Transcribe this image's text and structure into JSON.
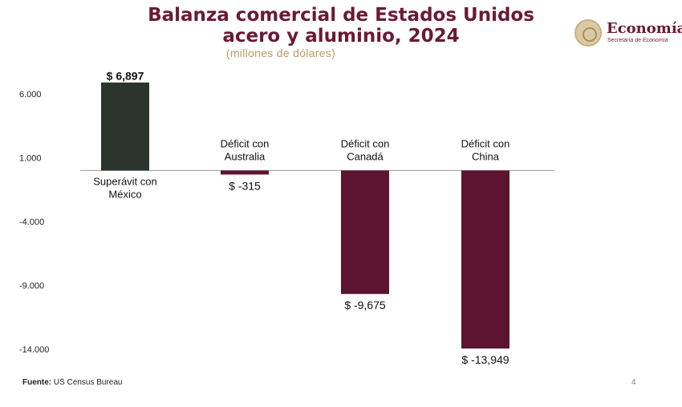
{
  "header": {
    "title_line1": "Balanza comercial de Estados Unidos",
    "title_line2": "acero y aluminio, 2024",
    "subtitle": "(millones de dólares)"
  },
  "logo": {
    "name": "Economía",
    "subtitle": "Secretaría de Economía"
  },
  "footer": {
    "source_label": "Fuente:",
    "source_text": "US Census Bureau",
    "page_number": "4"
  },
  "chart_data": {
    "type": "bar",
    "categories": [
      "Superávit con México",
      "Déficit con Australia",
      "Déficit con Canadá",
      "Déficit con China"
    ],
    "values": [
      6897,
      -315,
      -9675,
      -13949
    ],
    "value_labels": [
      "$ 6,897",
      "$ -315",
      "$ -9,675",
      "$ -13,949"
    ],
    "y_ticks": [
      6000,
      1000,
      -4000,
      -9000,
      -14000
    ],
    "y_tick_labels": [
      "6.000",
      "1.000",
      "-4.000",
      "-9.000",
      "-14.000"
    ],
    "ylim": [
      -14500,
      7000
    ],
    "colors": {
      "positive": "#2b342d",
      "negative": "#5c1430",
      "title": "#6b1a32",
      "subtitle": "#b79a6a"
    },
    "grid": false
  }
}
